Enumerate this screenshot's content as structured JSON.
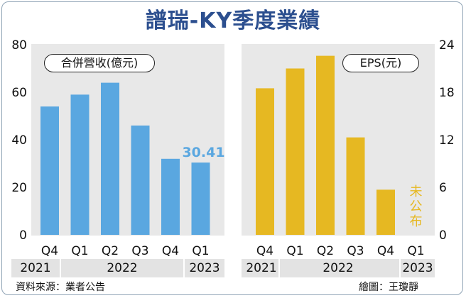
{
  "title": "譜瑞-KY季度業績",
  "chart_data": [
    {
      "type": "bar",
      "name": "合併營收(億元)",
      "legend_label": "合併營收(億元)",
      "categories": [
        "Q4",
        "Q1",
        "Q2",
        "Q3",
        "Q4",
        "Q1"
      ],
      "years": [
        {
          "label": "2021",
          "span": [
            0,
            0
          ]
        },
        {
          "label": "2022",
          "span": [
            1,
            4
          ]
        },
        {
          "label": "2023",
          "span": [
            5,
            5
          ]
        }
      ],
      "values": [
        54,
        59,
        64,
        46,
        32,
        30.41
      ],
      "data_labels": [
        null,
        null,
        null,
        null,
        null,
        "30.41"
      ],
      "ylim": [
        0,
        80
      ],
      "yticks": [
        0,
        20,
        40,
        60,
        80
      ],
      "axis_side": "left",
      "color": "#5aa7e0",
      "label_color": "#5aa7e0"
    },
    {
      "type": "bar",
      "name": "EPS(元)",
      "legend_label": "EPS(元)",
      "categories": [
        "Q4",
        "Q1",
        "Q2",
        "Q3",
        "Q4",
        "Q1"
      ],
      "years": [
        {
          "label": "2021",
          "span": [
            0,
            0
          ]
        },
        {
          "label": "2022",
          "span": [
            1,
            4
          ]
        },
        {
          "label": "2023",
          "span": [
            5,
            5
          ]
        }
      ],
      "values": [
        18.5,
        21,
        22.6,
        12.3,
        5.7,
        null
      ],
      "annotations": [
        null,
        null,
        null,
        null,
        null,
        "未公布"
      ],
      "ylim": [
        0,
        24
      ],
      "yticks": [
        0,
        6,
        12,
        18,
        24
      ],
      "axis_side": "right",
      "color": "#e6b822",
      "label_color": "#e6b822"
    }
  ],
  "footer": {
    "source": "資料來源：業者公告",
    "credit": "繪圖：王瓊靜"
  }
}
